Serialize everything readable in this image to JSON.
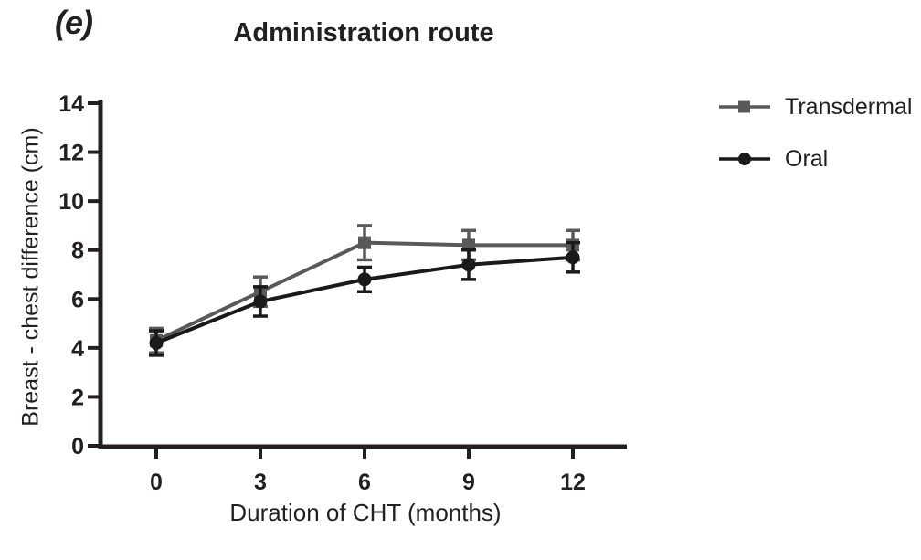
{
  "figure": {
    "panel_label": "(e)",
    "background": "#ffffff",
    "text_color": "#231f20"
  },
  "chart_data": {
    "type": "line",
    "title": "Administration route",
    "xlabel": "Duration of CHT (months)",
    "ylabel": "Breast - chest difference (cm)",
    "x": [
      0,
      3,
      6,
      9,
      12
    ],
    "x_ticks": [
      "0",
      "3",
      "6",
      "9",
      "12"
    ],
    "y_ticks": [
      "0",
      "2",
      "4",
      "6",
      "8",
      "10",
      "12",
      "14"
    ],
    "y_tick_values": [
      0,
      2,
      4,
      6,
      8,
      10,
      12,
      14
    ],
    "ylim": [
      0,
      14
    ],
    "xlim": [
      0,
      12
    ],
    "grid": false,
    "legend_position": "right-outside",
    "axis_color": "#231f20",
    "series": [
      {
        "name": "Transdermal",
        "marker": "square",
        "color": "#595959",
        "values": [
          4.3,
          6.3,
          8.3,
          8.2,
          8.2
        ],
        "errors": [
          0.5,
          0.6,
          0.7,
          0.6,
          0.6
        ]
      },
      {
        "name": "Oral",
        "marker": "circle",
        "color": "#1a1a1a",
        "values": [
          4.2,
          5.9,
          6.8,
          7.4,
          7.7
        ],
        "errors": [
          0.5,
          0.6,
          0.5,
          0.6,
          0.6
        ]
      }
    ]
  }
}
